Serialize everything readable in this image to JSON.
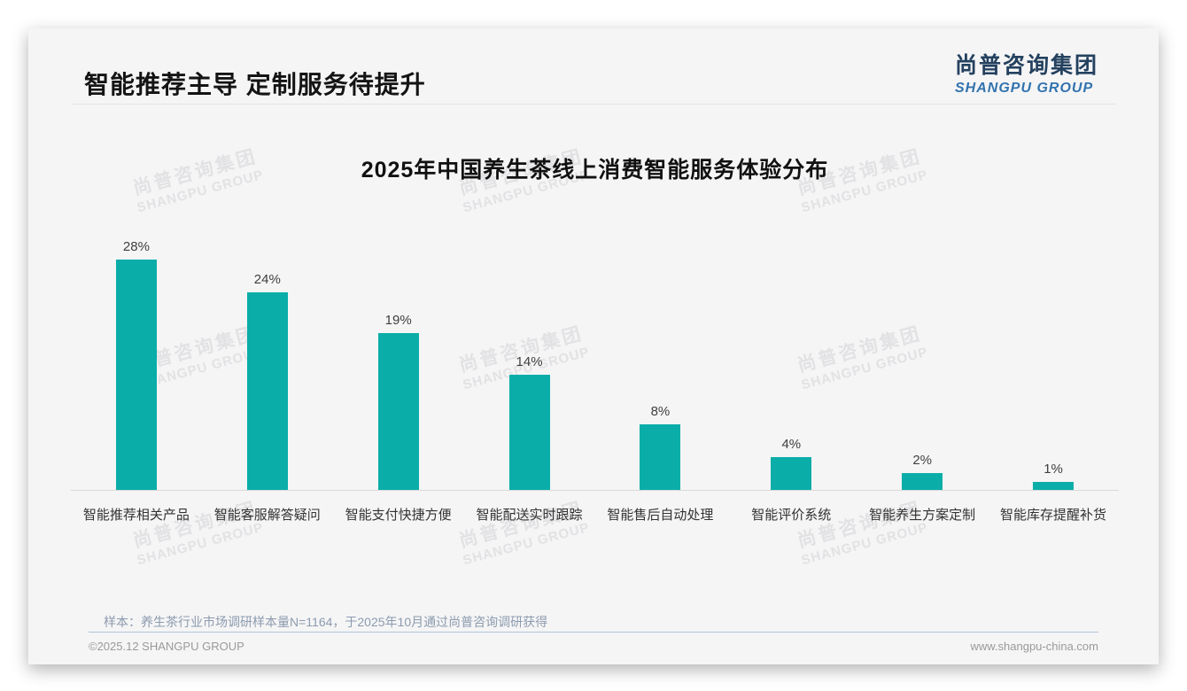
{
  "header": {
    "title": "智能推荐主导 定制服务待提升",
    "logo": {
      "cn": "尚普咨询集团",
      "en": "SHANGPU GROUP"
    }
  },
  "watermark": {
    "line1": "尚普咨询集团",
    "line2": "SHANGPU GROUP"
  },
  "chart_data": {
    "type": "bar",
    "title": "2025年中国养生茶线上消费智能服务体验分布",
    "categories": [
      "智能推荐相关产品",
      "智能客服解答疑问",
      "智能支付快捷方便",
      "智能配送实时跟踪",
      "智能售后自动处理",
      "智能评价系统",
      "智能养生方案定制",
      "智能库存提醒补货"
    ],
    "values": [
      28,
      24,
      19,
      14,
      8,
      4,
      2,
      1
    ],
    "unit": "%",
    "xlabel": "",
    "ylabel": "",
    "ylim": [
      0,
      30
    ],
    "grid": false,
    "legend": false,
    "value_labels": true,
    "bar_color": "#0aada8"
  },
  "footer": {
    "note": "样本：养生茶行业市场调研样本量N=1164，于2025年10月通过尚普咨询调研获得",
    "copyright": "©2025.12 SHANGPU GROUP",
    "website": "www.shangpu-china.com"
  },
  "colors": {
    "bar": "#0aada8",
    "logo_cn": "#24415f",
    "logo_en": "#3173ae",
    "slide_bg": "#f5f5f6",
    "footer_line": "#afc3d6",
    "watermark": "#e2e2e4"
  }
}
